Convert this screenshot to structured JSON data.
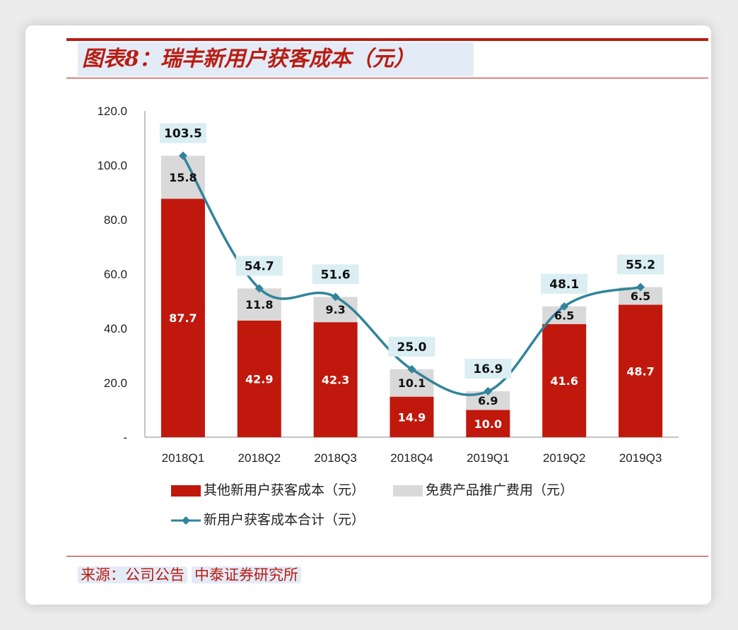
{
  "title": "图表8：瑞丰新用户获客成本（元）",
  "source": {
    "prefix": "来源：公司公告",
    "org": "中泰证券研究所"
  },
  "colors": {
    "accent": "#b81d13",
    "bar_other": "#c0180c",
    "bar_promo": "#d9d9d9",
    "line_total": "#31849b",
    "label_bg": "#daeef3"
  },
  "chart_data": {
    "type": "bar",
    "stacked": true,
    "categories": [
      "2018Q1",
      "2018Q2",
      "2018Q3",
      "2018Q4",
      "2019Q1",
      "2019Q2",
      "2019Q3"
    ],
    "series": [
      {
        "name": "其他新用户获客成本（元）",
        "type": "bar",
        "values": [
          87.7,
          42.9,
          42.3,
          14.9,
          10.0,
          41.6,
          48.7
        ]
      },
      {
        "name": "免费产品推广费用（元）",
        "type": "bar",
        "values": [
          15.8,
          11.8,
          9.3,
          10.1,
          6.9,
          6.5,
          6.5
        ]
      },
      {
        "name": "新用户获客成本合计（元）",
        "type": "line",
        "values": [
          103.5,
          54.7,
          51.6,
          25.0,
          16.9,
          48.1,
          55.2
        ]
      }
    ],
    "ylim": [
      0,
      120
    ],
    "yticks": [
      "-",
      "20.0",
      "40.0",
      "60.0",
      "80.0",
      "100.0",
      "120.0"
    ],
    "grid": false,
    "legend_position": "bottom"
  }
}
